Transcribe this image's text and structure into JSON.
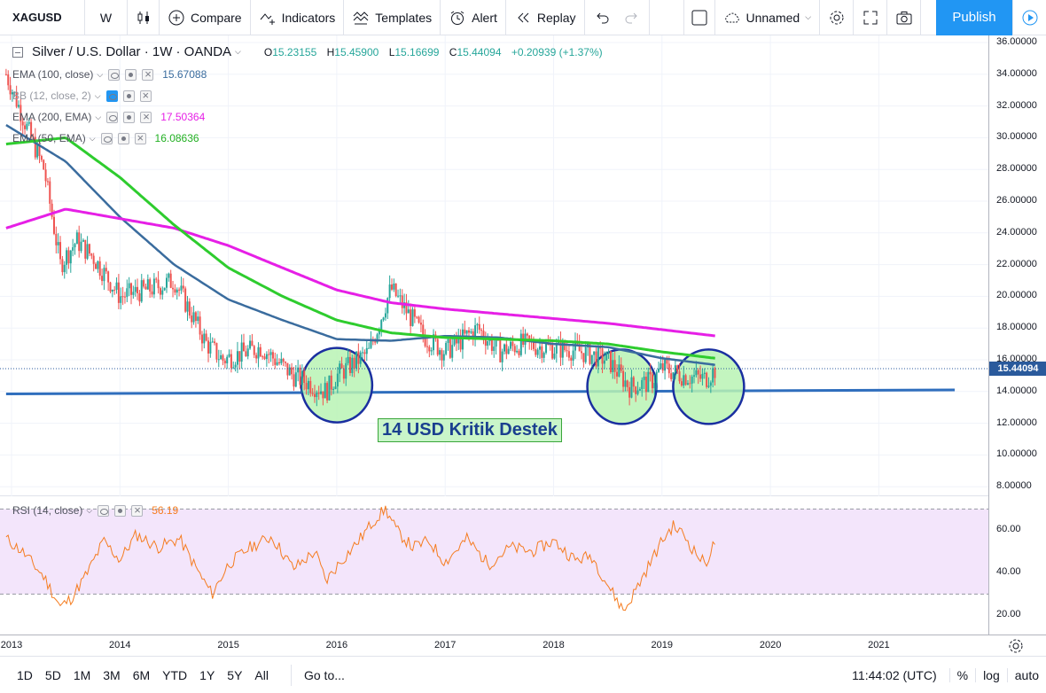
{
  "toolbar": {
    "symbol": "XAGUSD",
    "interval": "W",
    "compare": "Compare",
    "indicators": "Indicators",
    "templates": "Templates",
    "alert": "Alert",
    "replay": "Replay",
    "layout_name": "Unnamed",
    "publish": "Publish"
  },
  "legend": {
    "title": "Silver / U.S. Dollar · 1W · OANDA",
    "ohlc": {
      "o_label": "O",
      "o": "15.23155",
      "h_label": "H",
      "h": "15.45900",
      "l_label": "L",
      "l": "15.16699",
      "c_label": "C",
      "c": "15.44094",
      "change": "+0.20939 (+1.37%)"
    },
    "indicators": [
      {
        "name": "EMA (100, close)",
        "value": "15.67088",
        "color": "#3a6c9e"
      },
      {
        "name": "BB (12, close, 2)",
        "value": "",
        "color": "#2196f3"
      },
      {
        "name": "EMA (200, EMA)",
        "value": "17.50364",
        "color": "#e61fe6"
      },
      {
        "name": "EMA (50, EMA)",
        "value": "16.08636",
        "color": "#2ecc2e"
      }
    ],
    "rsi": {
      "name": "RSI (14, close)",
      "value": "56.19",
      "color": "#f57c20"
    }
  },
  "price_axis": {
    "labels": [
      "36.00000",
      "34.00000",
      "32.00000",
      "30.00000",
      "28.00000",
      "26.00000",
      "24.00000",
      "22.00000",
      "20.00000",
      "18.00000",
      "16.00000",
      "14.00000",
      "12.00000",
      "10.00000",
      "8.00000"
    ],
    "current_price": "15.44094"
  },
  "rsi_axis": {
    "labels": [
      "60.00",
      "40.00",
      "20.00"
    ]
  },
  "time_axis": [
    "2013",
    "2014",
    "2015",
    "2016",
    "2017",
    "2018",
    "2019",
    "2020",
    "2021"
  ],
  "annotation": "14 USD Kritik Destek",
  "bottom": {
    "ranges": [
      "1D",
      "5D",
      "1M",
      "3M",
      "6M",
      "YTD",
      "1Y",
      "5Y",
      "All"
    ],
    "goto": "Go to...",
    "clock": "11:44:02 (UTC)",
    "percent": "%",
    "log": "log",
    "auto": "auto"
  },
  "colors": {
    "up": "#26a69a",
    "down": "#ef5350",
    "support": "#2f6ebd",
    "circle_fill": "#b9f3b4",
    "circle_stroke": "#1a2fa0"
  },
  "chart_data": {
    "type": "line",
    "title": "Silver / U.S. Dollar · 1W · OANDA",
    "y_range": [
      8,
      36
    ],
    "x_range": [
      "2013",
      "2021"
    ],
    "series": [
      {
        "name": "Price (approx. close)",
        "x": [
          2012.95,
          2013.15,
          2013.3,
          2013.45,
          2013.6,
          2013.75,
          2014.0,
          2014.3,
          2014.5,
          2014.8,
          2014.95,
          2015.3,
          2015.6,
          2015.9,
          2016.0,
          2016.2,
          2016.3,
          2016.5,
          2016.6,
          2016.8,
          2017.0,
          2017.3,
          2017.5,
          2017.7,
          2017.9,
          2018.2,
          2018.5,
          2018.7,
          2018.9,
          2019.0,
          2019.2,
          2019.4,
          2019.5
        ],
        "y": [
          34.0,
          30.5,
          28.0,
          22.0,
          23.5,
          22.5,
          20.0,
          20.5,
          21.0,
          17.0,
          16.0,
          16.8,
          15.0,
          14.0,
          15.0,
          16.0,
          16.5,
          20.5,
          19.5,
          17.5,
          16.5,
          18.0,
          16.5,
          17.0,
          16.8,
          16.6,
          16.0,
          14.3,
          14.6,
          15.5,
          15.0,
          14.8,
          15.44
        ]
      },
      {
        "name": "EMA (100, close)",
        "x": [
          2012.95,
          2013.5,
          2014.0,
          2014.5,
          2015.0,
          2015.5,
          2016.0,
          2016.5,
          2017.0,
          2017.5,
          2018.0,
          2018.5,
          2019.0,
          2019.5
        ],
        "y": [
          30.8,
          28.5,
          25.0,
          22.0,
          19.8,
          18.5,
          17.3,
          17.2,
          17.5,
          17.4,
          17.0,
          16.8,
          16.1,
          15.67
        ]
      },
      {
        "name": "EMA (200, EMA)",
        "x": [
          2012.95,
          2013.5,
          2014.0,
          2014.5,
          2015.0,
          2015.5,
          2016.0,
          2016.5,
          2017.0,
          2017.5,
          2018.0,
          2018.5,
          2019.0,
          2019.5
        ],
        "y": [
          24.3,
          25.5,
          24.9,
          24.3,
          23.2,
          21.8,
          20.4,
          19.6,
          19.2,
          18.9,
          18.6,
          18.3,
          17.9,
          17.5
        ]
      },
      {
        "name": "EMA (50, EMA)",
        "x": [
          2012.95,
          2013.5,
          2014.0,
          2014.5,
          2015.0,
          2015.5,
          2016.0,
          2016.5,
          2017.0,
          2017.5,
          2018.0,
          2018.5,
          2019.0,
          2019.5
        ],
        "y": [
          29.6,
          30.0,
          27.5,
          24.5,
          21.8,
          20.0,
          18.5,
          17.7,
          17.4,
          17.3,
          17.2,
          17.0,
          16.5,
          16.09
        ]
      },
      {
        "name": "Support",
        "x": [
          2012.95,
          2021.7
        ],
        "y": [
          13.85,
          14.1
        ]
      }
    ],
    "rsi": {
      "name": "RSI (14, close)",
      "x": [
        2012.95,
        2013.1,
        2013.3,
        2013.45,
        2013.55,
        2013.7,
        2013.85,
        2014.0,
        2014.15,
        2014.35,
        2014.55,
        2014.75,
        2014.85,
        2015.0,
        2015.2,
        2015.4,
        2015.6,
        2015.8,
        2015.9,
        2016.0,
        2016.2,
        2016.35,
        2016.45,
        2016.55,
        2016.7,
        2016.85,
        2017.0,
        2017.2,
        2017.4,
        2017.6,
        2017.8,
        2018.0,
        2018.2,
        2018.35,
        2018.55,
        2018.65,
        2018.8,
        2019.0,
        2019.1,
        2019.2,
        2019.3,
        2019.4,
        2019.5
      ],
      "y": [
        56,
        50,
        38,
        24,
        28,
        40,
        55,
        46,
        58,
        52,
        56,
        38,
        30,
        44,
        52,
        57,
        42,
        50,
        36,
        43,
        55,
        65,
        70,
        60,
        52,
        55,
        45,
        56,
        44,
        52,
        50,
        55,
        46,
        48,
        30,
        22,
        36,
        55,
        62,
        58,
        50,
        44,
        56
      ],
      "levels": [
        70,
        30
      ],
      "y_range": [
        16,
        76
      ]
    }
  }
}
